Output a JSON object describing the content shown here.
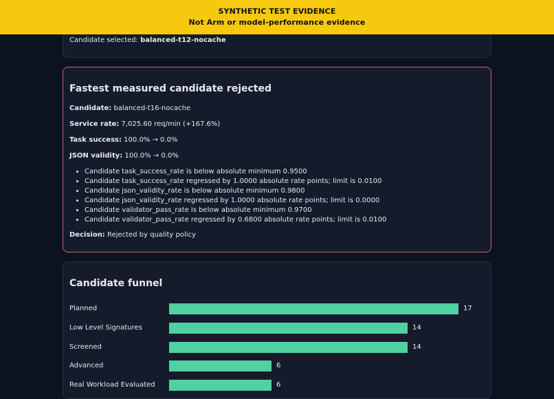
{
  "banner": {
    "line1": "SYNTHETIC TEST EVIDENCE",
    "line2": "Not Arm or model-performance evidence"
  },
  "selection": {
    "label": "Candidate selected:",
    "value": "balanced-t12-nocache"
  },
  "rejected": {
    "title": "Fastest measured candidate rejected",
    "candidate_label": "Candidate:",
    "candidate_value": "balanced-t16-nocache",
    "service_label": "Service rate:",
    "service_value": "7,025.60 req/min (+167.6%)",
    "task_label": "Task success:",
    "task_value": "100.0% → 0.0%",
    "json_label": "JSON validity:",
    "json_value": "100.0% → 0.0%",
    "reasons": [
      "Candidate task_success_rate is below absolute minimum 0.9500",
      "Candidate task_success_rate regressed by 1.0000 absolute rate points; limit is 0.0100",
      "Candidate json_validity_rate is below absolute minimum 0.9800",
      "Candidate json_validity_rate regressed by 1.0000 absolute rate points; limit is 0.0000",
      "Candidate validator_pass_rate is below absolute minimum 0.9700",
      "Candidate validator_pass_rate regressed by 0.6800 absolute rate points; limit is 0.0100"
    ],
    "decision_label": "Decision:",
    "decision_value": "Rejected by quality policy"
  },
  "funnel": {
    "title": "Candidate funnel",
    "bar_color": "#4fd1a1",
    "max": 17,
    "rows": [
      {
        "label": "Planned",
        "count": 17
      },
      {
        "label": "Low Level Signatures",
        "count": 14
      },
      {
        "label": "Screened",
        "count": 14
      },
      {
        "label": "Advanced",
        "count": 6
      },
      {
        "label": "Real Workload Evaluated",
        "count": 6
      }
    ]
  }
}
